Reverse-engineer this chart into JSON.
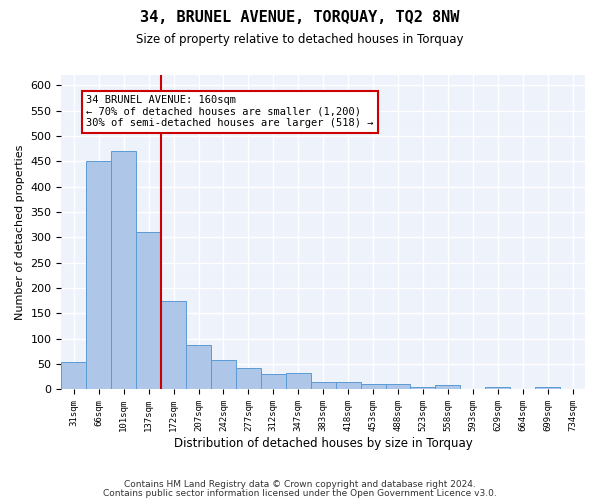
{
  "title": "34, BRUNEL AVENUE, TORQUAY, TQ2 8NW",
  "subtitle": "Size of property relative to detached houses in Torquay",
  "xlabel": "Distribution of detached houses by size in Torquay",
  "ylabel": "Number of detached properties",
  "bar_color": "#aec6e8",
  "bar_edge_color": "#5b9bd5",
  "background_color": "#eef2fb",
  "grid_color": "#ffffff",
  "red_line_color": "#cc0000",
  "annotation_box_color": "#cc0000",
  "bin_labels": [
    "31sqm",
    "66sqm",
    "101sqm",
    "137sqm",
    "172sqm",
    "207sqm",
    "242sqm",
    "277sqm",
    "312sqm",
    "347sqm",
    "383sqm",
    "418sqm",
    "453sqm",
    "488sqm",
    "523sqm",
    "558sqm",
    "593sqm",
    "629sqm",
    "664sqm",
    "699sqm",
    "734sqm"
  ],
  "bar_values": [
    55,
    450,
    470,
    310,
    175,
    88,
    58,
    42,
    30,
    32,
    15,
    15,
    10,
    10,
    5,
    8,
    0,
    5,
    0,
    5,
    0
  ],
  "red_line_x": 3.5,
  "ylim": [
    0,
    620
  ],
  "yticks": [
    0,
    50,
    100,
    150,
    200,
    250,
    300,
    350,
    400,
    450,
    500,
    550,
    600
  ],
  "annotation_line1": "34 BRUNEL AVENUE: 160sqm",
  "annotation_line2": "← 70% of detached houses are smaller (1,200)",
  "annotation_line3": "30% of semi-detached houses are larger (518) →",
  "footnote1": "Contains HM Land Registry data © Crown copyright and database right 2024.",
  "footnote2": "Contains public sector information licensed under the Open Government Licence v3.0."
}
